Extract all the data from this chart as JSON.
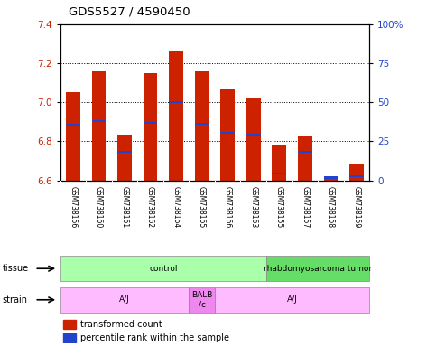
{
  "title": "GDS5527 / 4590450",
  "samples": [
    "GSM738156",
    "GSM738160",
    "GSM738161",
    "GSM738162",
    "GSM738164",
    "GSM738165",
    "GSM738166",
    "GSM738163",
    "GSM738155",
    "GSM738157",
    "GSM738158",
    "GSM738159"
  ],
  "bar_values": [
    7.05,
    7.16,
    6.835,
    7.15,
    7.265,
    7.16,
    7.07,
    7.02,
    6.78,
    6.83,
    6.615,
    6.68
  ],
  "bar_base": 6.6,
  "percentile_values": [
    6.885,
    6.905,
    6.745,
    6.895,
    7.0,
    6.89,
    6.845,
    6.835,
    6.635,
    6.745,
    6.615,
    6.62
  ],
  "ylim_left": [
    6.6,
    7.4
  ],
  "ylim_right": [
    0,
    100
  ],
  "yticks_left": [
    6.6,
    6.8,
    7.0,
    7.2,
    7.4
  ],
  "yticks_right": [
    0,
    25,
    50,
    75,
    100
  ],
  "bar_color": "#cc2200",
  "blue_color": "#2244cc",
  "tissue_groups": [
    {
      "label": "control",
      "start": 0,
      "end": 8,
      "color": "#aaffaa"
    },
    {
      "label": "rhabdomyosarcoma tumor",
      "start": 8,
      "end": 12,
      "color": "#66dd66"
    }
  ],
  "strain_groups": [
    {
      "label": "A/J",
      "start": 0,
      "end": 5,
      "color": "#ffbbff"
    },
    {
      "label": "BALB\n/c",
      "start": 5,
      "end": 6,
      "color": "#ee88ee"
    },
    {
      "label": "A/J",
      "start": 6,
      "end": 12,
      "color": "#ffbbff"
    }
  ],
  "axis_label_left_color": "#cc2200",
  "axis_label_right_color": "#2244cc",
  "bg_color": "#ffffff",
  "tick_label_area_color": "#bbbbbb"
}
